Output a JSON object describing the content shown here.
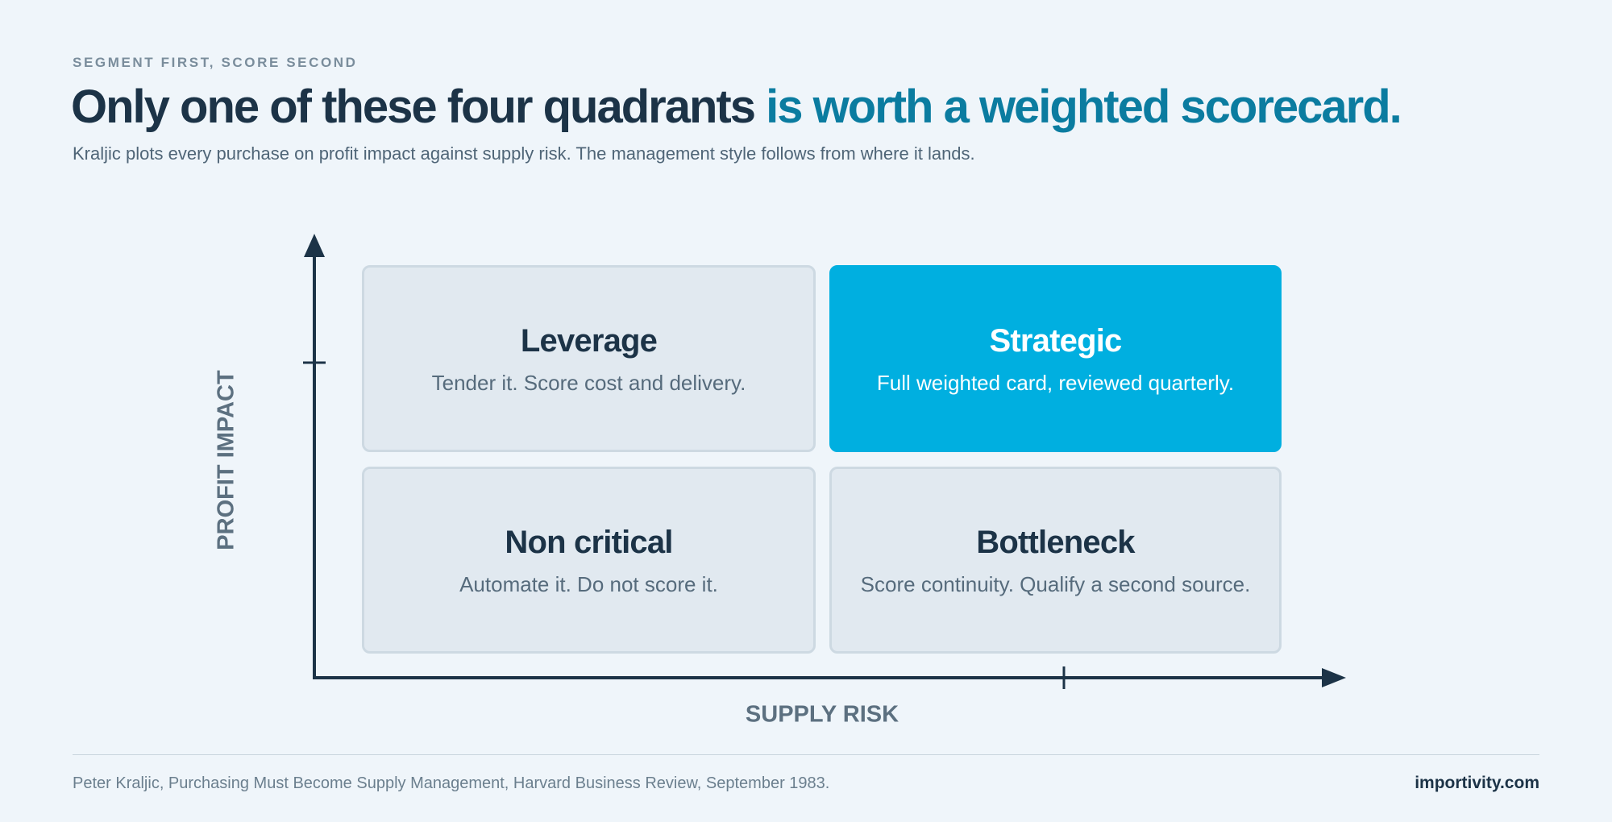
{
  "header": {
    "eyebrow": "SEGMENT FIRST, SCORE SECOND",
    "headline_main": "Only one of these four quadrants",
    "headline_accent": "is worth a weighted scorecard.",
    "subtitle": "Kraljic plots every purchase on profit impact against supply risk. The management style follows from where it lands."
  },
  "matrix": {
    "y_axis_label": "PROFIT IMPACT",
    "x_axis_label": "SUPPLY RISK",
    "quadrants": {
      "leverage": {
        "title": "Leverage",
        "description": "Tender it. Score cost and delivery.",
        "highlighted": false
      },
      "strategic": {
        "title": "Strategic",
        "description": "Full weighted card, reviewed quarterly.",
        "highlighted": true
      },
      "non_critical": {
        "title": "Non critical",
        "description": "Automate it. Do not score it.",
        "highlighted": false
      },
      "bottleneck": {
        "title": "Bottleneck",
        "description": "Score continuity. Qualify a second source.",
        "highlighted": false
      }
    }
  },
  "footer": {
    "source": "Peter Kraljic, Purchasing Must Become Supply Management, Harvard Business Review, September 1983.",
    "brand": "importivity.com"
  },
  "colors": {
    "background": "#eff5fa",
    "ink": "#1c3347",
    "accent_text": "#0b7ca0",
    "highlight": "#00afe0",
    "quadrant_fill": "#e1e9f0",
    "quadrant_border": "#cdd9e2",
    "muted": "#5c7080"
  }
}
